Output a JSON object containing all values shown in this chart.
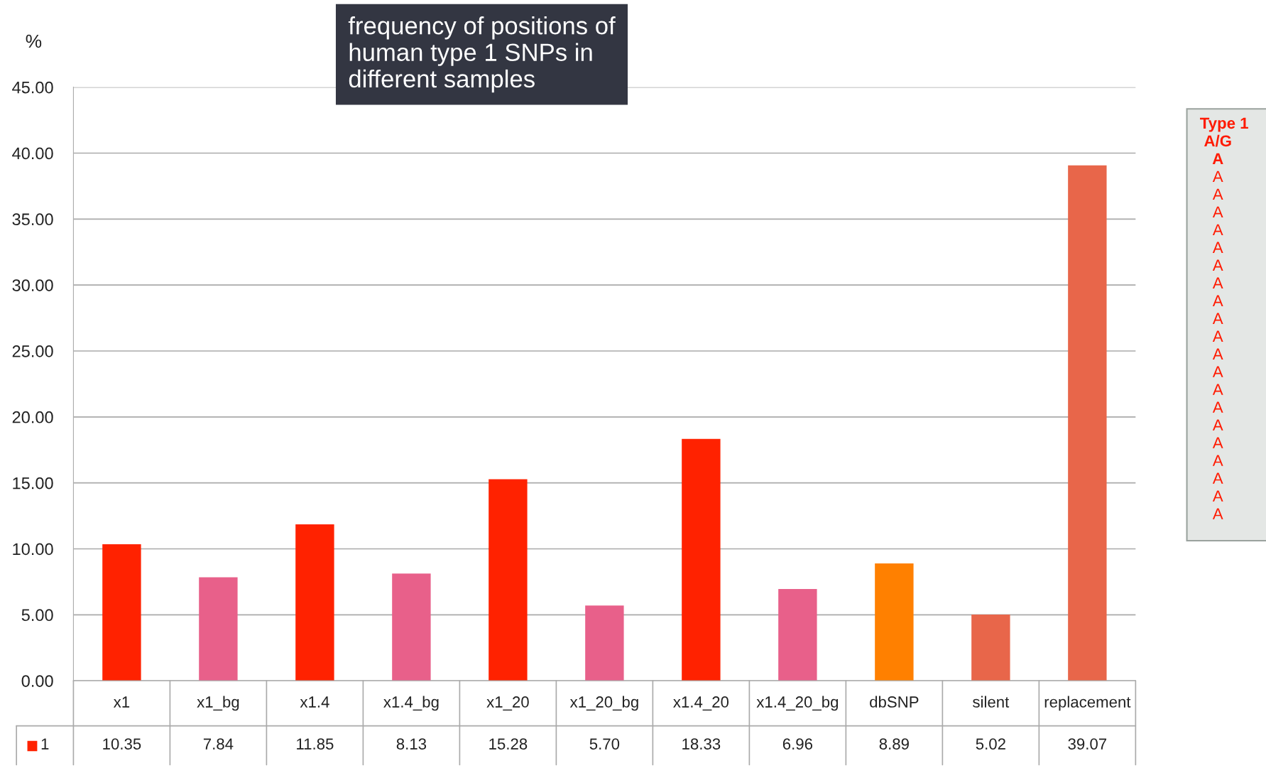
{
  "chart_data": {
    "type": "bar",
    "title": "frequency of positions of human type 1 SNPs in different samples",
    "ylabel": "%",
    "categories": [
      "x1",
      "x1_bg",
      "x1.4",
      "x1.4_bg",
      "x1_20",
      "x1_20_bg",
      "x1.4_20",
      "x1.4_20_bg",
      "dbSNP",
      "silent",
      "replacement"
    ],
    "series": [
      {
        "name": "1",
        "color": "#ff2200",
        "colors": [
          "#ff2200",
          "#e8608a",
          "#ff2200",
          "#e8608a",
          "#ff2200",
          "#e8608a",
          "#ff2200",
          "#e8608a",
          "#ff8000",
          "#e8664a",
          "#e8664a"
        ],
        "values": [
          10.35,
          7.84,
          11.85,
          8.13,
          15.28,
          5.7,
          18.33,
          6.96,
          8.89,
          5.02,
          39.07
        ],
        "value_labels": [
          "10.35",
          "7.84",
          "11.85",
          "8.13",
          "15.28",
          "5.70",
          "18.33",
          "6.96",
          "8.89",
          "5.02",
          "39.07"
        ]
      }
    ],
    "ylim": [
      0,
      45
    ],
    "yticks": [
      {
        "value": 0,
        "label": "0.00"
      },
      {
        "value": 5,
        "label": "5.00"
      },
      {
        "value": 10,
        "label": "10.00"
      },
      {
        "value": 15,
        "label": "15.00"
      },
      {
        "value": 20,
        "label": "20.00"
      },
      {
        "value": 25,
        "label": "25.00"
      },
      {
        "value": 30,
        "label": "30.00"
      },
      {
        "value": 35,
        "label": "35.00"
      },
      {
        "value": 40,
        "label": "40.00"
      },
      {
        "value": 45,
        "label": "45.00"
      }
    ],
    "grid": "y",
    "annotations": [
      "Type 1",
      "A/G",
      "A",
      "A",
      "A",
      "A",
      "A",
      "A",
      "A",
      "A",
      "A",
      "A",
      "A",
      "A",
      "A",
      "A",
      "A",
      "A",
      "A",
      "A",
      "A",
      "A",
      "A"
    ]
  }
}
